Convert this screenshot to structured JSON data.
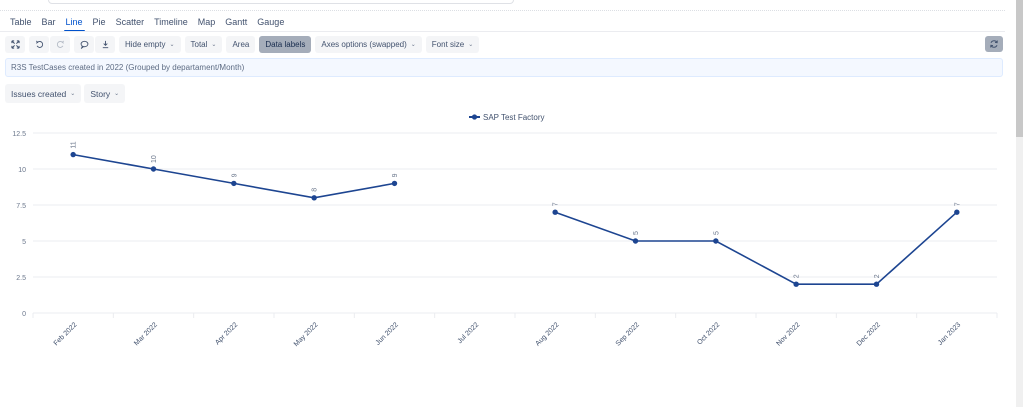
{
  "tabs": [
    {
      "label": "Table",
      "active": false
    },
    {
      "label": "Bar",
      "active": false
    },
    {
      "label": "Line",
      "active": true
    },
    {
      "label": "Pie",
      "active": false
    },
    {
      "label": "Scatter",
      "active": false
    },
    {
      "label": "Timeline",
      "active": false
    },
    {
      "label": "Map",
      "active": false
    },
    {
      "label": "Gantt",
      "active": false
    },
    {
      "label": "Gauge",
      "active": false
    }
  ],
  "toolbar": {
    "fullscreen_icon": "expand-icon",
    "undo_icon": "undo-icon",
    "redo_icon": "redo-icon",
    "comment_icon": "comment-icon",
    "download_icon": "download-icon",
    "hide_empty": "Hide empty",
    "total": "Total",
    "area": "Area",
    "data_labels": "Data labels",
    "axes_options": "Axes options (swapped)",
    "font_size": "Font size",
    "refresh_icon": "refresh-icon"
  },
  "jql": {
    "text": "R3S TestCases created in 2022 (Grouped by departament/Month)"
  },
  "filters": {
    "measure": "Issues created",
    "issue_type": "Story"
  },
  "colors": {
    "series": "#1d4591",
    "active_tab": "#0052cc",
    "grid": "#ebecf0"
  },
  "chart_data": {
    "type": "line",
    "title": "",
    "xlabel": "",
    "ylabel": "",
    "categories": [
      "Feb 2022",
      "Mar 2022",
      "Apr 2022",
      "May 2022",
      "Jun 2022",
      "Jul 2022",
      "Aug 2022",
      "Sep 2022",
      "Oct 2022",
      "Nov 2022",
      "Dec 2022",
      "Jan 2023"
    ],
    "series": [
      {
        "name": "SAP Test Factory",
        "values": [
          11,
          10,
          9,
          8,
          9,
          null,
          7,
          5,
          5,
          2,
          2,
          7
        ]
      }
    ],
    "yticks": [
      "0",
      "2.5",
      "5",
      "7.5",
      "10",
      "12.5"
    ],
    "ylim": [
      0,
      12.5
    ],
    "grid": true,
    "data_labels": true,
    "legend_position": "top"
  }
}
